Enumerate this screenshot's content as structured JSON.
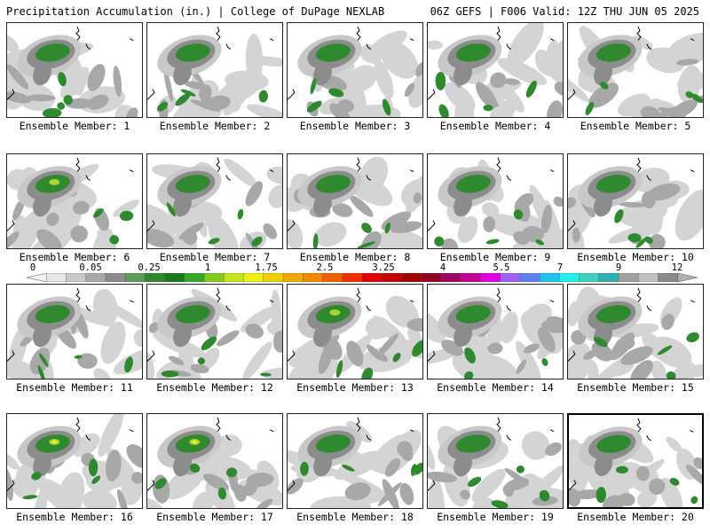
{
  "header": {
    "title": "Precipitation Accumulation (in.) | College of DuPage NEXLAB",
    "run_info": "06Z GEFS | F006 Valid: 12Z THU JUN 05 2025"
  },
  "panels": [
    {
      "label": "Ensemble Member: 1",
      "member": 1
    },
    {
      "label": "Ensemble Member: 2",
      "member": 2
    },
    {
      "label": "Ensemble Member: 3",
      "member": 3
    },
    {
      "label": "Ensemble Member: 4",
      "member": 4
    },
    {
      "label": "Ensemble Member: 5",
      "member": 5
    },
    {
      "label": "Ensemble Member: 6",
      "member": 6
    },
    {
      "label": "Ensemble Member: 7",
      "member": 7
    },
    {
      "label": "Ensemble Member: 8",
      "member": 8
    },
    {
      "label": "Ensemble Member: 9",
      "member": 9
    },
    {
      "label": "Ensemble Member: 10",
      "member": 10
    },
    {
      "label": "Ensemble Member: 11",
      "member": 11
    },
    {
      "label": "Ensemble Member: 12",
      "member": 12
    },
    {
      "label": "Ensemble Member: 13",
      "member": 13
    },
    {
      "label": "Ensemble Member: 14",
      "member": 14
    },
    {
      "label": "Ensemble Member: 15",
      "member": 15
    },
    {
      "label": "Ensemble Member: 16",
      "member": 16
    },
    {
      "label": "Ensemble Member: 17",
      "member": 17
    },
    {
      "label": "Ensemble Member: 18",
      "member": 18
    },
    {
      "label": "Ensemble Member: 19",
      "member": 19
    },
    {
      "label": "Ensemble Member: 20",
      "member": 20
    }
  ],
  "selected_member": 20,
  "legend": {
    "tick_labels": [
      "0",
      "0.05",
      "0.25",
      "1",
      "1.75",
      "2.5",
      "3.25",
      "4",
      "5.5",
      "7",
      "9",
      "12"
    ],
    "colors": [
      "#e6e6e6",
      "#c8c8c8",
      "#a8a8a8",
      "#8a8a8a",
      "#5a9a5a",
      "#2f8a2f",
      "#1a7a1a",
      "#33a82a",
      "#80c91e",
      "#c6e41e",
      "#f0f010",
      "#f0d000",
      "#f0a800",
      "#f08800",
      "#f06000",
      "#f03000",
      "#e00000",
      "#c00000",
      "#a00000",
      "#900020",
      "#a00060",
      "#c00090",
      "#e000e0",
      "#a060f0",
      "#6080f0",
      "#20c0f0",
      "#20f0f0",
      "#40d0c0",
      "#30b0b0",
      "#a0a0a0",
      "#c0c0c0",
      "#8a8a8a"
    ]
  }
}
